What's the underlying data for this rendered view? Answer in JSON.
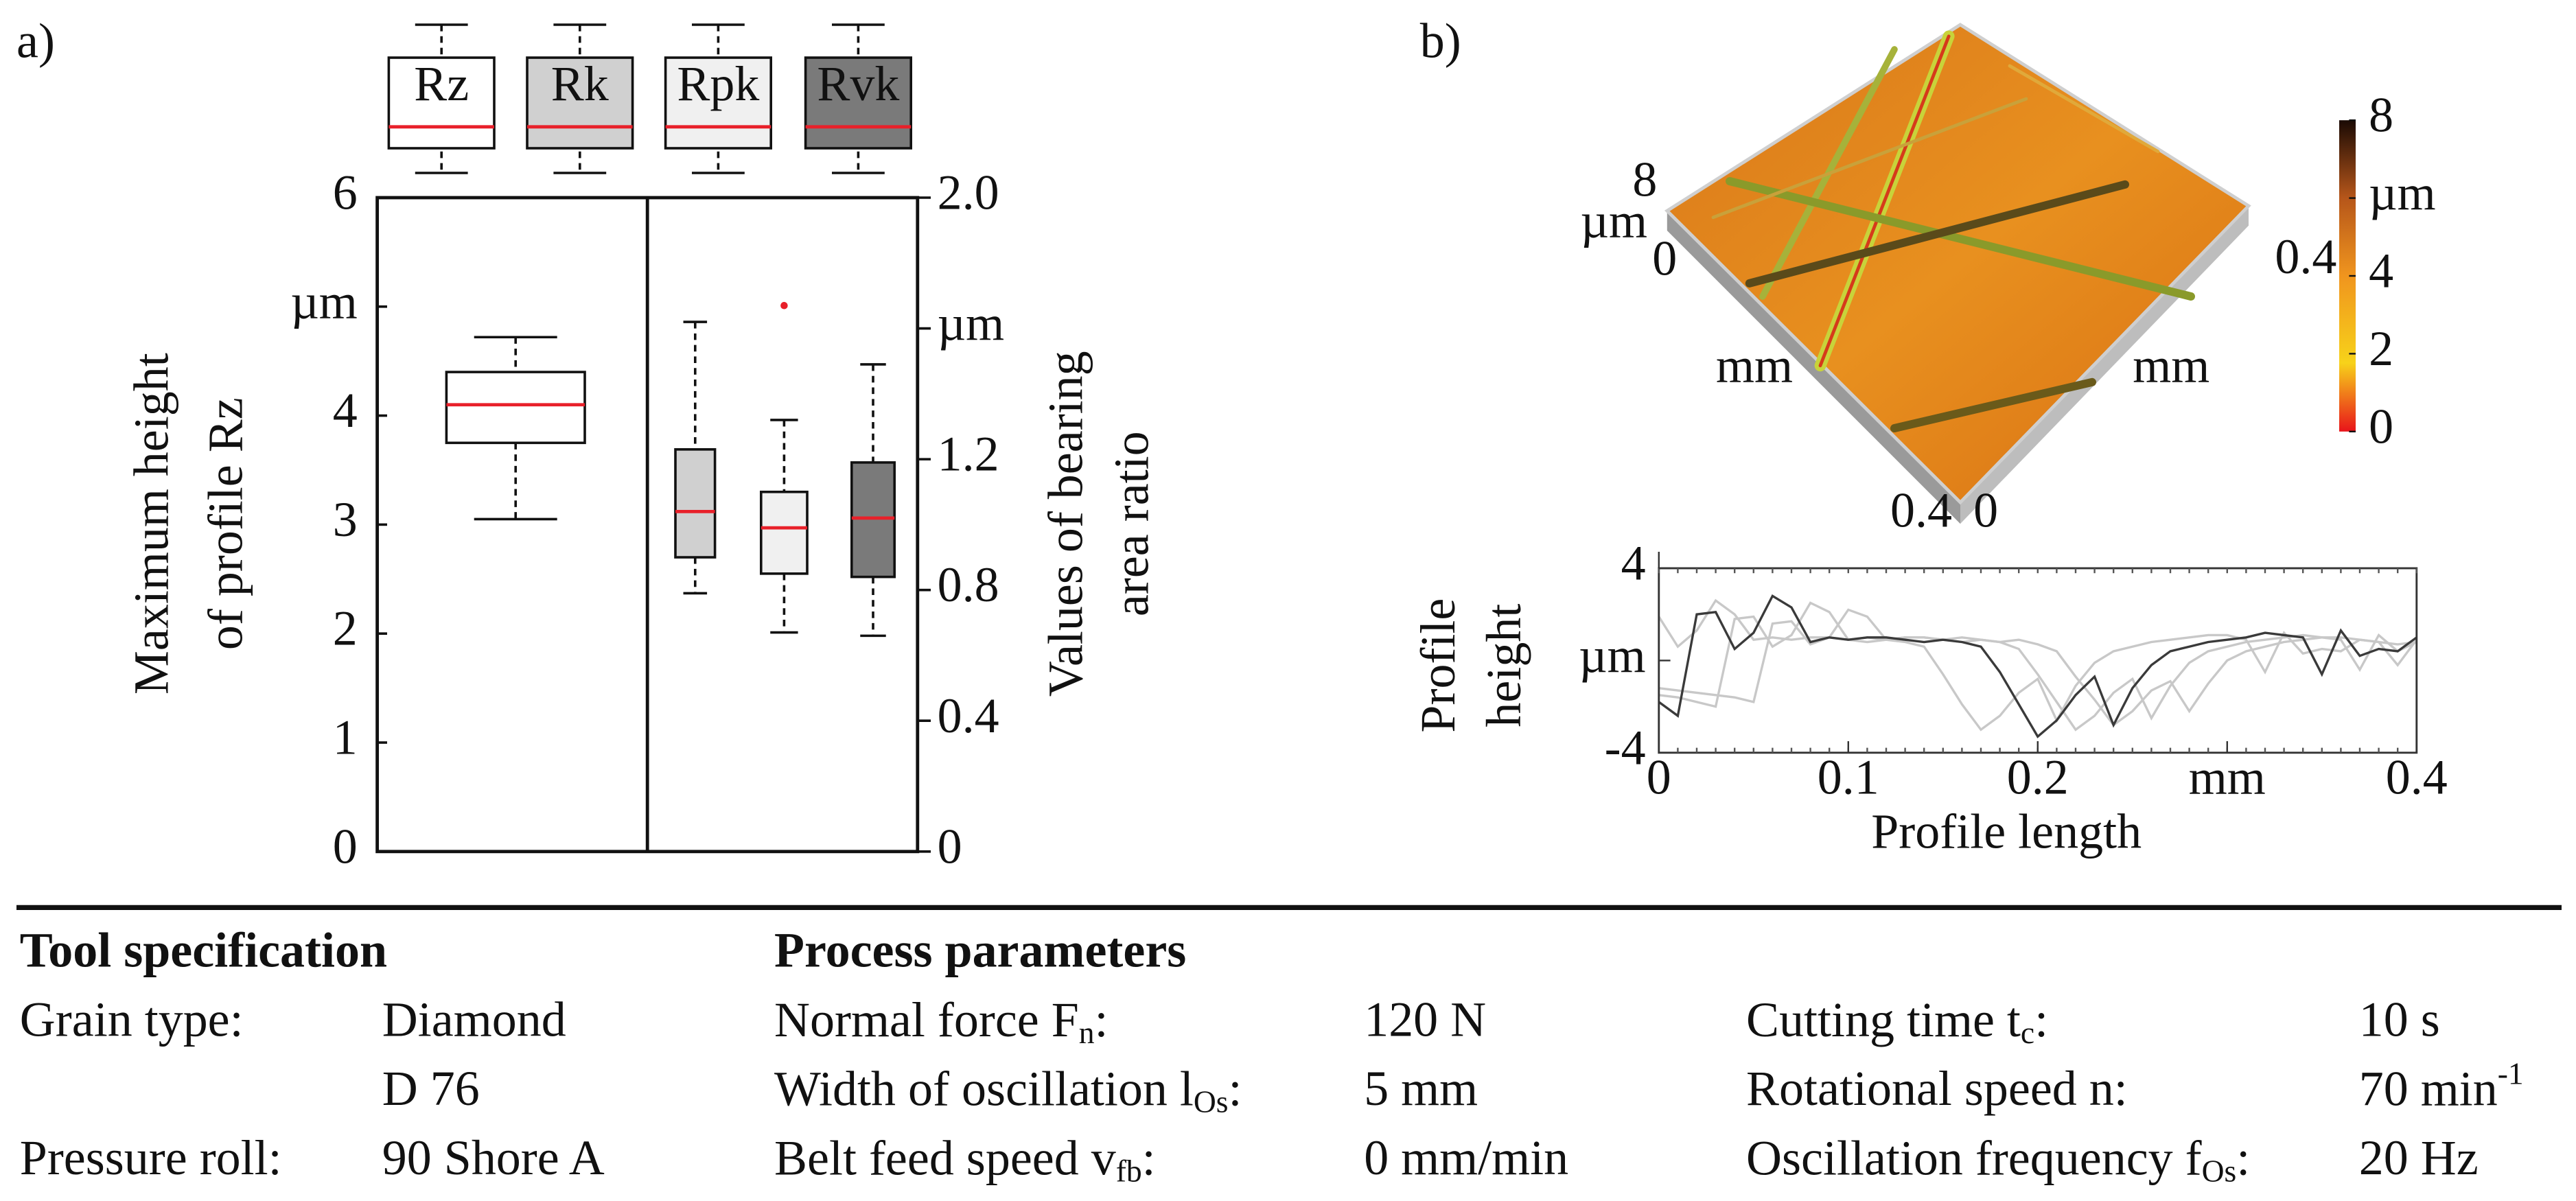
{
  "chart_data": [
    {
      "type": "box",
      "label": "a)",
      "ylabel": [
        "Maximum height",
        "of profile Rz"
      ],
      "y2label": [
        "Values of  bearing",
        "area ratio"
      ],
      "ylim": [
        0,
        6
      ],
      "yticks": [
        0,
        1,
        2,
        3,
        4,
        {
          "value": 5,
          "label": "µm"
        },
        6
      ],
      "y2lim": [
        0,
        2
      ],
      "y2ticks": [
        0,
        0.4,
        0.8,
        1.2,
        {
          "value": 1.6,
          "label": "µm"
        },
        {
          "value": 2,
          "label": "2.0"
        }
      ],
      "median_color": "#e8202a",
      "series": [
        {
          "name": "Rz",
          "color": "#ffffff",
          "whislo": 3.05,
          "q1": 3.75,
          "med": 4.1,
          "q3": 4.4,
          "whishi": 4.72
        },
        {
          "name": "Rk",
          "color": "#d0d0d0",
          "axis": "y2",
          "whislo": 0.79,
          "q1": 0.9,
          "med": 1.04,
          "q3": 1.23,
          "whishi": 1.62
        },
        {
          "name": "Rpk",
          "color": "#f0f0f0",
          "axis": "y2",
          "whislo": 0.67,
          "q1": 0.85,
          "med": 0.99,
          "q3": 1.1,
          "whishi": 1.32,
          "fliers": [
            1.67
          ]
        },
        {
          "name": "Rvk",
          "color": "#7a7a7a",
          "axis": "y2",
          "whislo": 0.66,
          "q1": 0.84,
          "med": 1.02,
          "q3": 1.19,
          "whishi": 1.49
        }
      ]
    },
    {
      "type": "surface",
      "label": "b)",
      "xlim": [
        0,
        0.4
      ],
      "xticks": [
        0,
        0.4
      ],
      "xlabel": "mm",
      "ylim": [
        0,
        0.4
      ],
      "yticks": [
        0.4
      ],
      "ylabel": "mm",
      "zlim": [
        0,
        8
      ],
      "zticks": [
        0,
        8
      ],
      "zlabel": "µm",
      "clim": [
        0,
        8
      ],
      "cticks": [
        0,
        2,
        4,
        {
          "value": 6,
          "label": "µm"
        },
        8
      ]
    },
    {
      "type": "line",
      "xlabel": "Profile length",
      "ylabel": [
        "Profile",
        "height"
      ],
      "xlim": [
        0,
        0.4
      ],
      "xticks": [
        0,
        0.1,
        0.2,
        {
          "value": 0.3,
          "label": "mm"
        },
        0.4
      ],
      "ylim": [
        -4,
        4
      ],
      "yticks": [
        -4,
        {
          "value": 0,
          "label": "µm"
        },
        4
      ],
      "x": [
        0,
        0.01,
        0.02,
        0.03,
        0.04,
        0.05,
        0.06,
        0.07,
        0.08,
        0.09,
        0.1,
        0.11,
        0.12,
        0.13,
        0.14,
        0.15,
        0.16,
        0.17,
        0.18,
        0.19,
        0.2,
        0.21,
        0.22,
        0.23,
        0.24,
        0.25,
        0.26,
        0.27,
        0.28,
        0.29,
        0.3,
        0.31,
        0.32,
        0.33,
        0.34,
        0.35,
        0.36,
        0.37,
        0.38,
        0.39,
        0.4
      ],
      "series": [
        {
          "color": "#c8c8c8",
          "values": [
            -1.5,
            -1.6,
            -1.8,
            -2.0,
            1.8,
            1.9,
            0.6,
            1.1,
            2.5,
            2.1,
            0.9,
            1.0,
            0.9,
            1.0,
            1.0,
            0.9,
            0.8,
            0.9,
            0.8,
            0.5,
            -0.6,
            -1.8,
            -3.0,
            -2.4,
            -1.4,
            -0.8,
            -2.5,
            -1.1,
            -0.1,
            0.4,
            0.6,
            0.8,
            0.9,
            1.0,
            1.1,
            1.0,
            0.9,
            -0.4,
            1.1,
            0.4,
            0.8
          ]
        },
        {
          "color": "#c8c8c8",
          "values": [
            -1.2,
            -1.3,
            -1.4,
            -1.5,
            -1.6,
            -1.8,
            1.6,
            1.7,
            0.7,
            1.0,
            2.2,
            1.9,
            0.9,
            1.0,
            1.0,
            0.9,
            1.0,
            0.9,
            0.8,
            0.9,
            0.7,
            0.4,
            -0.7,
            -1.7,
            -2.8,
            -2.2,
            -1.3,
            -0.9,
            -2.2,
            -1.0,
            0.0,
            0.4,
            0.6,
            0.8,
            0.9,
            1.0,
            1.0,
            0.9,
            0.8,
            -0.2,
            0.9
          ]
        },
        {
          "color": "#c8c8c8",
          "values": [
            1.9,
            0.6,
            1.3,
            2.6,
            2.0,
            0.9,
            1.0,
            0.9,
            1.0,
            1.0,
            0.9,
            0.8,
            0.9,
            0.8,
            0.6,
            -0.6,
            -1.9,
            -3.0,
            -2.4,
            -1.4,
            -0.8,
            -2.6,
            -1.1,
            -0.1,
            0.4,
            0.6,
            0.8,
            0.9,
            1.0,
            1.1,
            1.1,
            0.9,
            -0.5,
            1.2,
            0.3,
            0.5,
            0.4,
            0.9,
            0.8,
            0.7,
            0.8
          ]
        },
        {
          "color": "#3a3a3a",
          "values": [
            -1.8,
            -2.4,
            2.0,
            2.1,
            0.5,
            1.2,
            2.8,
            2.3,
            0.8,
            1.0,
            0.9,
            1.0,
            1.0,
            0.9,
            0.8,
            0.9,
            0.8,
            0.6,
            -0.5,
            -1.9,
            -3.3,
            -2.6,
            -1.5,
            -0.7,
            -2.8,
            -1.2,
            -0.2,
            0.4,
            0.6,
            0.8,
            0.9,
            1.0,
            1.2,
            1.1,
            1.0,
            -0.6,
            1.3,
            0.2,
            0.5,
            0.4,
            1.0
          ]
        }
      ]
    }
  ],
  "tool_specification": {
    "title": "Tool specification",
    "rows": [
      {
        "label": "Grain type:",
        "value": [
          "Diamond",
          "D 76"
        ]
      },
      {
        "label": "Pressure roll:",
        "value": [
          "90 Shore A"
        ]
      }
    ]
  },
  "process_parameters": {
    "title": "Process parameters",
    "columns": [
      [
        {
          "label": {
            "text": "Normal force F",
            "sub": "n",
            "suffix": ":"
          },
          "value": "120 N"
        },
        {
          "label": {
            "text": "Width of oscillation l",
            "sub": "Os",
            "suffix": ":"
          },
          "value": "5 mm"
        },
        {
          "label": {
            "text": "Belt feed speed v",
            "sub": "fb",
            "suffix": ":"
          },
          "value": "0 mm/min"
        }
      ],
      [
        {
          "label": {
            "text": "Cutting time t",
            "sub": "c",
            "suffix": ":"
          },
          "value": "10 s"
        },
        {
          "label": "Rotational speed n:",
          "value": {
            "text": "70 min",
            "sup": "-1"
          }
        },
        {
          "label": {
            "text": "Oscillation frequency f",
            "sub": "Os",
            "suffix": ":"
          },
          "value": "20 Hz"
        }
      ]
    ]
  }
}
